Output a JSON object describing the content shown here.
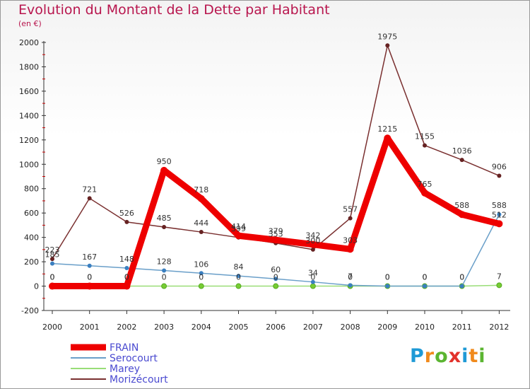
{
  "title": "Evolution du Montant de la Dette par Habitant",
  "subtitle": "(en €)",
  "logo": {
    "text": "Proxiti",
    "colors": [
      "#1f9ad6",
      "#f08a1c",
      "#5bb531",
      "#e2322b",
      "#1f9ad6",
      "#f08a1c",
      "#5bb531"
    ]
  },
  "chart_data": {
    "type": "line",
    "title": "Evolution du Montant de la Dette par Habitant",
    "subtitle": "(en €)",
    "xlabel": "",
    "ylabel": "",
    "x": [
      "2000",
      "2001",
      "2002",
      "2003",
      "2004",
      "2005",
      "2006",
      "2007",
      "2008",
      "2009",
      "2010",
      "2011",
      "2012"
    ],
    "ylim": [
      -200,
      2000
    ],
    "yticks": [
      -200,
      0,
      200,
      400,
      600,
      800,
      1000,
      1200,
      1400,
      1600,
      1800,
      2000
    ],
    "grid": false,
    "legend": "bottom-left",
    "series": [
      {
        "name": "FRAIN",
        "color": "#ee0000",
        "marker": "#ee0000",
        "values": [
          0,
          0,
          0,
          950,
          718,
          414,
          379,
          342,
          303,
          1215,
          765,
          588,
          512
        ]
      },
      {
        "name": "Serocourt",
        "color": "#6a9fc9",
        "marker": "#3a7fc0",
        "values": [
          185,
          167,
          148,
          128,
          106,
          84,
          60,
          34,
          7,
          0,
          0,
          0,
          588
        ]
      },
      {
        "name": "Marey",
        "color": "#99dd77",
        "marker": "#77cc33",
        "values": [
          0,
          0,
          0,
          0,
          0,
          0,
          0,
          0,
          0,
          0,
          0,
          0,
          7
        ]
      },
      {
        "name": "Morizécourt",
        "color": "#7a3030",
        "marker": "#662222",
        "values": [
          223,
          721,
          526,
          485,
          444,
          399,
          353,
          300,
          557,
          1975,
          1155,
          1036,
          906
        ]
      }
    ]
  }
}
